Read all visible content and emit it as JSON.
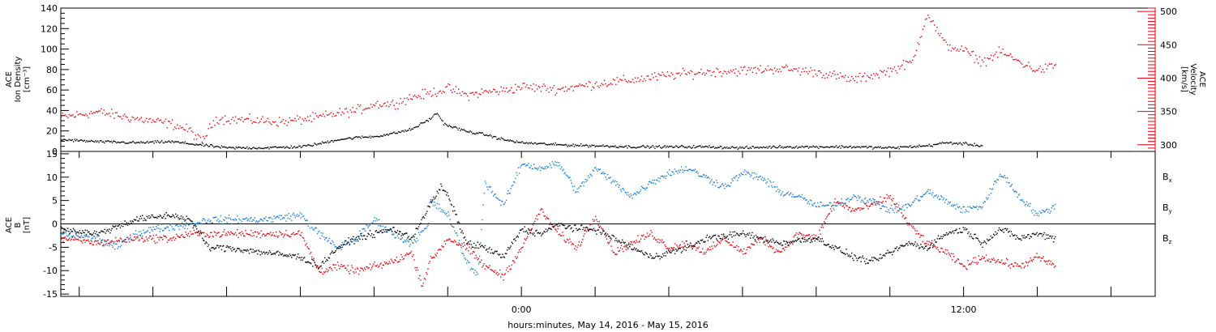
{
  "colors": {
    "black": "#000000",
    "red": "#e8000b",
    "blue": "#1a7fd6"
  },
  "chart_data": [
    {
      "type": "scatter",
      "panel": "top",
      "ylabel": [
        "ACE",
        "Ion Density",
        "[cm⁻³]"
      ],
      "ylim": [
        0,
        140
      ],
      "yticks": [
        "0",
        "20",
        "40",
        "60",
        "80",
        "100",
        "120",
        "140"
      ],
      "y2label": [
        "ACE",
        "Velocity",
        "[km/s]"
      ],
      "y2lim": [
        290,
        505
      ],
      "y2ticks": [
        "300",
        "350",
        "400",
        "450",
        "500"
      ],
      "xlim_hours": [
        -12.5,
        17.2
      ],
      "series": [
        {
          "role": "ion-density",
          "axis": "left",
          "color": "black",
          "points": [
            [
              -12.5,
              12
            ],
            [
              -11.5,
              10
            ],
            [
              -10.5,
              9
            ],
            [
              -9.5,
              10
            ],
            [
              -9,
              8
            ],
            [
              -8.5,
              6
            ],
            [
              -8,
              4
            ],
            [
              -7,
              4
            ],
            [
              -6,
              5
            ],
            [
              -5.5,
              8
            ],
            [
              -5,
              12
            ],
            [
              -4.5,
              14
            ],
            [
              -4,
              15
            ],
            [
              -3.5,
              18
            ],
            [
              -3,
              22
            ],
            [
              -2.5,
              32
            ],
            [
              -2.3,
              38
            ],
            [
              -2.1,
              27
            ],
            [
              -1.5,
              20
            ],
            [
              -1,
              17
            ],
            [
              -0.5,
              12
            ],
            [
              0,
              9
            ],
            [
              1,
              7
            ],
            [
              2,
              6
            ],
            [
              3,
              5
            ],
            [
              4,
              5
            ],
            [
              5,
              5
            ],
            [
              6,
              4
            ],
            [
              7,
              5
            ],
            [
              8,
              5
            ],
            [
              9,
              5
            ],
            [
              10,
              4
            ],
            [
              11,
              6
            ],
            [
              11.5,
              9
            ],
            [
              12,
              8
            ],
            [
              12.5,
              6
            ]
          ]
        },
        {
          "role": "velocity",
          "axis": "right",
          "color": "red",
          "points": [
            [
              -12.5,
              342
            ],
            [
              -11.5,
              350
            ],
            [
              -10.5,
              340
            ],
            [
              -9.5,
              332
            ],
            [
              -9,
              322
            ],
            [
              -8.7,
              305
            ],
            [
              -8.3,
              340
            ],
            [
              -7.5,
              338
            ],
            [
              -6.5,
              335
            ],
            [
              -5.5,
              342
            ],
            [
              -5,
              348
            ],
            [
              -4.5,
              352
            ],
            [
              -4,
              362
            ],
            [
              -3.5,
              362
            ],
            [
              -3,
              372
            ],
            [
              -2.5,
              378
            ],
            [
              -2,
              385
            ],
            [
              -1.5,
              375
            ],
            [
              -1,
              380
            ],
            [
              -0.5,
              382
            ],
            [
              0,
              388
            ],
            [
              1,
              384
            ],
            [
              2,
              392
            ],
            [
              3,
              398
            ],
            [
              4,
              405
            ],
            [
              5,
              410
            ],
            [
              6,
              412
            ],
            [
              7,
              415
            ],
            [
              8,
              410
            ],
            [
              9,
              398
            ],
            [
              10,
              412
            ],
            [
              10.6,
              425
            ],
            [
              11,
              498
            ],
            [
              11.5,
              450
            ],
            [
              12,
              442
            ],
            [
              12.5,
              425
            ],
            [
              13,
              440
            ],
            [
              13.5,
              425
            ],
            [
              14,
              412
            ],
            [
              14.5,
              420
            ]
          ]
        }
      ]
    },
    {
      "type": "scatter",
      "panel": "bottom",
      "ylabel": [
        "ACE",
        "B",
        "[nT]"
      ],
      "ylim": [
        -15.5,
        15.5
      ],
      "yticks": [
        "-15",
        "-10",
        "-5",
        "0",
        "5",
        "10",
        "15"
      ],
      "xticks": [
        {
          "hour": 0,
          "label": "0:00"
        },
        {
          "hour": 12,
          "label": "12:00"
        }
      ],
      "legend": [
        "Bx",
        "By",
        "Bz"
      ],
      "series": [
        {
          "name": "Bx",
          "color": "black",
          "points": [
            [
              -12.5,
              -1
            ],
            [
              -11.5,
              -2
            ],
            [
              -10.5,
              1
            ],
            [
              -9.5,
              2
            ],
            [
              -9,
              1
            ],
            [
              -8.5,
              -5
            ],
            [
              -8,
              -5
            ],
            [
              -7,
              -6
            ],
            [
              -6,
              -7
            ],
            [
              -5.5,
              -9
            ],
            [
              -5,
              -5
            ],
            [
              -4.5,
              -3
            ],
            [
              -4,
              -2
            ],
            [
              -3.5,
              -1
            ],
            [
              -3,
              -3
            ],
            [
              -2.5,
              4
            ],
            [
              -2.2,
              8
            ],
            [
              -2,
              6
            ],
            [
              -1.5,
              -4
            ],
            [
              -1,
              -5
            ],
            [
              -0.5,
              -7
            ],
            [
              0,
              -1
            ],
            [
              0.5,
              -2
            ],
            [
              1,
              0
            ],
            [
              1.5,
              -1
            ],
            [
              2,
              -1
            ],
            [
              2.5,
              -3
            ],
            [
              3,
              -5
            ],
            [
              3.5,
              -7
            ],
            [
              4,
              -6
            ],
            [
              4.5,
              -5
            ],
            [
              5,
              -3
            ],
            [
              6,
              -2
            ],
            [
              7,
              -4
            ],
            [
              8,
              -3
            ],
            [
              8.5,
              -5
            ],
            [
              9,
              -7
            ],
            [
              9.5,
              -8
            ],
            [
              10,
              -6
            ],
            [
              10.5,
              -4
            ],
            [
              11,
              -5
            ],
            [
              11.5,
              -2
            ],
            [
              12,
              -1
            ],
            [
              12.5,
              -4
            ],
            [
              13,
              -1
            ],
            [
              13.5,
              -3
            ],
            [
              14,
              -2
            ],
            [
              14.5,
              -3
            ]
          ]
        },
        {
          "name": "By",
          "color": "blue",
          "points": [
            [
              -12.5,
              -2
            ],
            [
              -11.5,
              -3
            ],
            [
              -11,
              -5
            ],
            [
              -10.5,
              -2
            ],
            [
              -10,
              -1
            ],
            [
              -9,
              0
            ],
            [
              -8.5,
              1
            ],
            [
              -8,
              1
            ],
            [
              -7,
              1
            ],
            [
              -6,
              2
            ],
            [
              -5.5,
              -2
            ],
            [
              -5,
              -5
            ],
            [
              -4.5,
              -3
            ],
            [
              -4,
              1
            ],
            [
              -3.5,
              -2
            ],
            [
              -3,
              -4
            ],
            [
              -2.5,
              0
            ],
            [
              -2.5,
              5
            ],
            [
              -2,
              2
            ],
            [
              -1.5,
              -8
            ],
            [
              -1.2,
              -11
            ],
            [
              -1,
              9
            ],
            [
              -0.5,
              4
            ],
            [
              0,
              13
            ],
            [
              0.5,
              12
            ],
            [
              1,
              13
            ],
            [
              1.5,
              7
            ],
            [
              2,
              12
            ],
            [
              2.5,
              9
            ],
            [
              3,
              6
            ],
            [
              3.5,
              9
            ],
            [
              4,
              11
            ],
            [
              4.5,
              12
            ],
            [
              5,
              10
            ],
            [
              5.5,
              8
            ],
            [
              6,
              11
            ],
            [
              6.5,
              10
            ],
            [
              7,
              7
            ],
            [
              7.5,
              6
            ],
            [
              8,
              4
            ],
            [
              8.5,
              4
            ],
            [
              9,
              6
            ],
            [
              9.5,
              5
            ],
            [
              10,
              3
            ],
            [
              10.5,
              4
            ],
            [
              11,
              7
            ],
            [
              11.5,
              5
            ],
            [
              12,
              3
            ],
            [
              12.5,
              4
            ],
            [
              13,
              11
            ],
            [
              13.5,
              6
            ],
            [
              14,
              2
            ],
            [
              14.5,
              4
            ]
          ]
        },
        {
          "name": "Bz",
          "color": "red",
          "points": [
            [
              -12.5,
              -3
            ],
            [
              -11.5,
              -4
            ],
            [
              -10.5,
              -3
            ],
            [
              -9.5,
              -3
            ],
            [
              -9,
              -2
            ],
            [
              -8.5,
              -2
            ],
            [
              -8,
              -2
            ],
            [
              -7,
              -2
            ],
            [
              -6,
              -2
            ],
            [
              -5.5,
              -10
            ],
            [
              -5,
              -9
            ],
            [
              -4.5,
              -10
            ],
            [
              -4,
              -9
            ],
            [
              -3.5,
              -8
            ],
            [
              -3,
              -6
            ],
            [
              -2.7,
              -13
            ],
            [
              -2.5,
              -8
            ],
            [
              -2,
              -3
            ],
            [
              -1.5,
              -5
            ],
            [
              -1,
              -9
            ],
            [
              -0.5,
              -11
            ],
            [
              0,
              -5
            ],
            [
              0.5,
              3
            ],
            [
              1,
              -2
            ],
            [
              1.5,
              -5
            ],
            [
              2,
              2
            ],
            [
              2.5,
              -6
            ],
            [
              3,
              -4
            ],
            [
              3.5,
              -2
            ],
            [
              4,
              -5
            ],
            [
              4.5,
              -4
            ],
            [
              5,
              -6
            ],
            [
              5.5,
              -3
            ],
            [
              6,
              -6
            ],
            [
              6.5,
              -3
            ],
            [
              7,
              -6
            ],
            [
              7.5,
              -2
            ],
            [
              8,
              -3
            ],
            [
              8.5,
              5
            ],
            [
              9,
              3
            ],
            [
              9.5,
              4
            ],
            [
              10,
              6
            ],
            [
              10.5,
              0
            ],
            [
              11,
              -4
            ],
            [
              11.5,
              -6
            ],
            [
              12,
              -9
            ],
            [
              12.5,
              -7
            ],
            [
              13,
              -8
            ],
            [
              13.5,
              -9
            ],
            [
              14,
              -7
            ],
            [
              14.5,
              -9
            ]
          ]
        }
      ]
    }
  ],
  "footer": "hours:minutes, May 14, 2016 - May 15, 2016"
}
